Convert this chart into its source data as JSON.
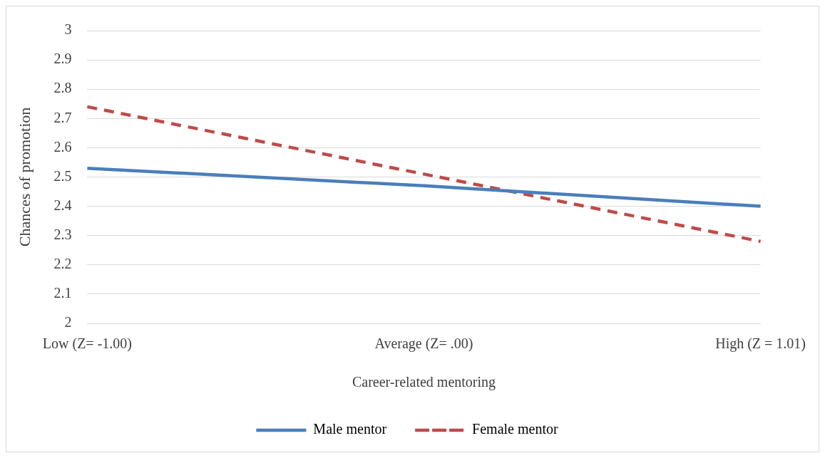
{
  "chart_data": {
    "type": "line",
    "xlabel": "Career-related mentoring",
    "ylabel": "Chances of promotion",
    "categories": [
      "Low (Z= -1.00)",
      "Average (Z= .00)",
      "High (Z = 1.01)"
    ],
    "series": [
      {
        "name": "Male mentor",
        "color": "#4a7ebb",
        "values": [
          2.53,
          2.47,
          2.4
        ],
        "line_style": "solid"
      },
      {
        "name": "Female mentor",
        "color": "#be4b48",
        "values": [
          2.74,
          2.51,
          2.28
        ],
        "line_style": "dashed"
      }
    ],
    "ylim": [
      2,
      3
    ],
    "yticks": [
      2,
      2.1,
      2.2,
      2.3,
      2.4,
      2.5,
      2.6,
      2.7,
      2.8,
      2.9,
      3
    ],
    "grid": "y",
    "legend": "bottom",
    "marker": "none"
  }
}
